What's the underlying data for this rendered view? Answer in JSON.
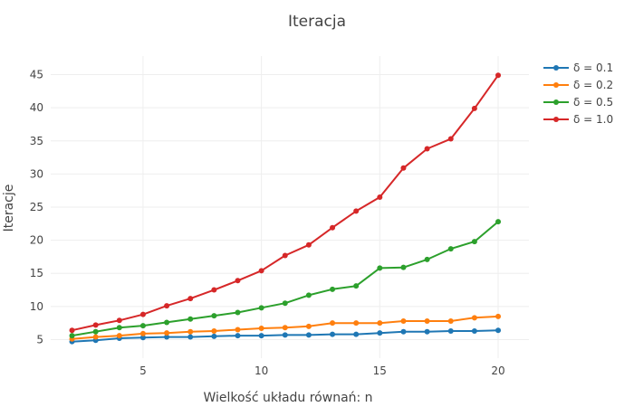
{
  "chart_data": {
    "type": "line",
    "title": "Iteracja",
    "xlabel": "Wielkość układu równań: n",
    "ylabel": "Iteracje",
    "xlim": [
      1.1,
      21.3
    ],
    "ylim": [
      2.2,
      47.8
    ],
    "x_ticks": [
      5,
      10,
      15,
      20
    ],
    "y_ticks": [
      5,
      10,
      15,
      20,
      25,
      30,
      35,
      40,
      45
    ],
    "grid": true,
    "legend_position": "top-right",
    "x": [
      2,
      3,
      4,
      5,
      6,
      7,
      8,
      9,
      10,
      11,
      12,
      13,
      14,
      15,
      16,
      17,
      18,
      19,
      20
    ],
    "series": [
      {
        "name": "δ = 0.1",
        "color": "#1f77b4",
        "values": [
          4.7,
          4.9,
          5.2,
          5.3,
          5.4,
          5.4,
          5.5,
          5.6,
          5.6,
          5.7,
          5.7,
          5.8,
          5.8,
          6.0,
          6.2,
          6.2,
          6.3,
          6.3,
          6.4
        ]
      },
      {
        "name": "δ = 0.2",
        "color": "#ff7f0e",
        "values": [
          5.1,
          5.4,
          5.6,
          5.9,
          6.0,
          6.2,
          6.3,
          6.5,
          6.7,
          6.8,
          7.0,
          7.5,
          7.5,
          7.5,
          7.8,
          7.8,
          7.8,
          8.3,
          8.5
        ]
      },
      {
        "name": "δ = 0.5",
        "color": "#2ca02c",
        "values": [
          5.6,
          6.2,
          6.8,
          7.1,
          7.6,
          8.1,
          8.6,
          9.1,
          9.8,
          10.5,
          11.7,
          12.6,
          13.1,
          15.8,
          15.9,
          17.1,
          18.7,
          19.8,
          22.8
        ]
      },
      {
        "name": "δ = 1.0",
        "color": "#d62728",
        "values": [
          6.4,
          7.2,
          7.9,
          8.8,
          10.1,
          11.2,
          12.5,
          13.9,
          15.4,
          17.7,
          19.3,
          21.9,
          24.4,
          26.5,
          30.9,
          33.8,
          35.3,
          39.9,
          44.9
        ]
      }
    ]
  }
}
